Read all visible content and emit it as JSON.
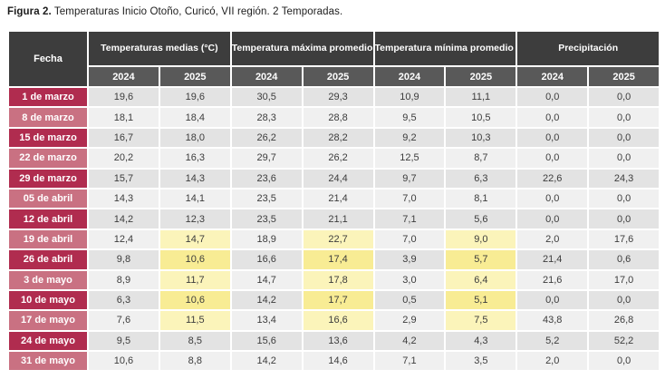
{
  "figure": {
    "label": "Figura 2.",
    "caption": "Temperaturas Inicio Otoño, Curicó, VII región. 2 Temporadas."
  },
  "table": {
    "corner_header": "Fecha",
    "groups": [
      {
        "label": "Temperaturas medias (°C)"
      },
      {
        "label": "Temperatura máxima promedio (°C)"
      },
      {
        "label": "Temperatura mínima promedio (°C)"
      },
      {
        "label": "Precipitación"
      }
    ],
    "year_headers": [
      "2024",
      "2025",
      "2024",
      "2025",
      "2024",
      "2025",
      "2024",
      "2025"
    ],
    "rows": [
      {
        "date": "1 de marzo",
        "values": [
          "19,6",
          "19,6",
          "30,5",
          "29,3",
          "10,9",
          "11,1",
          "0,0",
          "0,0"
        ],
        "highlighted": []
      },
      {
        "date": "8 de marzo",
        "values": [
          "18,1",
          "18,4",
          "28,3",
          "28,8",
          "9,5",
          "10,5",
          "0,0",
          "0,0"
        ],
        "highlighted": []
      },
      {
        "date": "15 de marzo",
        "values": [
          "16,7",
          "18,0",
          "26,2",
          "28,2",
          "9,2",
          "10,3",
          "0,0",
          "0,0"
        ],
        "highlighted": []
      },
      {
        "date": "22 de marzo",
        "values": [
          "20,2",
          "16,3",
          "29,7",
          "26,2",
          "12,5",
          "8,7",
          "0,0",
          "0,0"
        ],
        "highlighted": []
      },
      {
        "date": "29 de marzo",
        "values": [
          "15,7",
          "14,3",
          "23,6",
          "24,4",
          "9,7",
          "6,3",
          "22,6",
          "24,3"
        ],
        "highlighted": []
      },
      {
        "date": "05 de abril",
        "values": [
          "14,3",
          "14,1",
          "23,5",
          "21,4",
          "7,0",
          "8,1",
          "0,0",
          "0,0"
        ],
        "highlighted": []
      },
      {
        "date": "12 de abril",
        "values": [
          "14,2",
          "12,3",
          "23,5",
          "21,1",
          "7,1",
          "5,6",
          "0,0",
          "0,0"
        ],
        "highlighted": []
      },
      {
        "date": "19 de abril",
        "values": [
          "12,4",
          "14,7",
          "18,9",
          "22,7",
          "7,0",
          "9,0",
          "2,0",
          "17,6"
        ],
        "highlighted": [
          1,
          3,
          5
        ]
      },
      {
        "date": "26 de abril",
        "values": [
          "9,8",
          "10,6",
          "16,6",
          "17,4",
          "3,9",
          "5,7",
          "21,4",
          "0,6"
        ],
        "highlighted": [
          1,
          3,
          5
        ]
      },
      {
        "date": "3 de mayo",
        "values": [
          "8,9",
          "11,7",
          "14,7",
          "17,8",
          "3,0",
          "6,4",
          "21,6",
          "17,0"
        ],
        "highlighted": [
          1,
          3,
          5
        ]
      },
      {
        "date": "10 de mayo",
        "values": [
          "6,3",
          "10,6",
          "14,2",
          "17,7",
          "0,5",
          "5,1",
          "0,0",
          "0,0"
        ],
        "highlighted": [
          1,
          3,
          5
        ]
      },
      {
        "date": "17 de mayo",
        "values": [
          "7,6",
          "11,5",
          "13,4",
          "16,6",
          "2,9",
          "7,5",
          "43,8",
          "26,8"
        ],
        "highlighted": [
          1,
          3,
          5
        ]
      },
      {
        "date": "24 de mayo",
        "values": [
          "9,5",
          "8,5",
          "15,6",
          "13,6",
          "4,2",
          "4,3",
          "5,2",
          "52,2"
        ],
        "highlighted": []
      },
      {
        "date": "31 de mayo",
        "values": [
          "10,6",
          "8,8",
          "14,2",
          "14,6",
          "7,1",
          "3,5",
          "2,0",
          "0,0"
        ],
        "highlighted": []
      }
    ]
  },
  "colors": {
    "header_dark": "#3d3d3d",
    "header_year": "#595959",
    "date_dark": "#b02c4f",
    "date_light": "#c97182",
    "row_dark": "#e3e3e3",
    "row_light": "#f0f0f0",
    "highlight_dark": "#f8ec94",
    "highlight_light": "#fbf4ba"
  }
}
